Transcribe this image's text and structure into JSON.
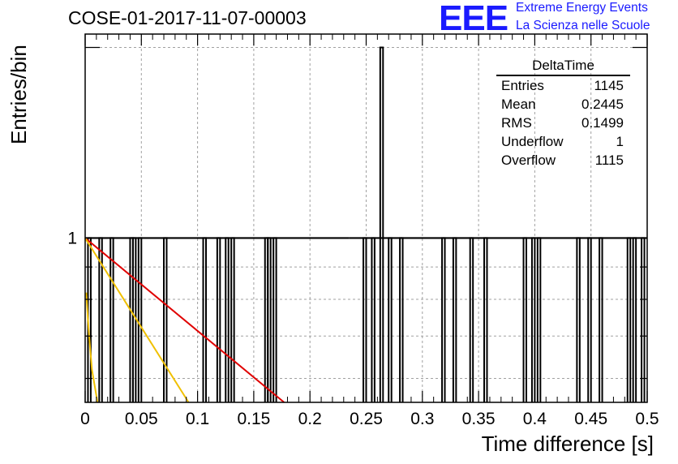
{
  "header": {
    "title": "COSE-01-2017-11-07-00003",
    "logo_text": "EEE",
    "logo_line1": "Extreme Energy Events",
    "logo_line2": "La Scienza nelle Scuole",
    "logo_color": "#1a1aff"
  },
  "stats_box": {
    "name": "DeltaTime",
    "rows": [
      {
        "label": "Entries",
        "value": "1145"
      },
      {
        "label": "Mean",
        "value": "0.2445"
      },
      {
        "label": "RMS",
        "value": "0.1499"
      },
      {
        "label": "Underflow",
        "value": "1"
      },
      {
        "label": "Overflow",
        "value": "1115"
      }
    ]
  },
  "chart_data": {
    "type": "bar",
    "xlabel": "Time difference [s]",
    "ylabel": "Entries/bin",
    "xlim": [
      0,
      0.5
    ],
    "ylim": [
      0.55,
      2.1
    ],
    "y_scale": "log",
    "grid": true,
    "x_ticks": [
      "0",
      "0.05",
      "0.1",
      "0.15",
      "0.2",
      "0.25",
      "0.3",
      "0.35",
      "0.4",
      "0.45",
      "0.5"
    ],
    "y_ticks": [
      "1"
    ],
    "bin_width": 0.0025,
    "bars": [
      {
        "x": 0.0025,
        "value": 1
      },
      {
        "x": 0.0125,
        "value": 1
      },
      {
        "x": 0.0225,
        "value": 1
      },
      {
        "x": 0.04,
        "value": 1
      },
      {
        "x": 0.0425,
        "value": 1
      },
      {
        "x": 0.0475,
        "value": 1
      },
      {
        "x": 0.07,
        "value": 1
      },
      {
        "x": 0.105,
        "value": 1
      },
      {
        "x": 0.1175,
        "value": 1
      },
      {
        "x": 0.125,
        "value": 1
      },
      {
        "x": 0.13,
        "value": 1
      },
      {
        "x": 0.16,
        "value": 1
      },
      {
        "x": 0.1625,
        "value": 1
      },
      {
        "x": 0.1675,
        "value": 1
      },
      {
        "x": 0.2475,
        "value": 1
      },
      {
        "x": 0.255,
        "value": 1
      },
      {
        "x": 0.2625,
        "value": 2
      },
      {
        "x": 0.27,
        "value": 1
      },
      {
        "x": 0.28,
        "value": 1
      },
      {
        "x": 0.3175,
        "value": 1
      },
      {
        "x": 0.3275,
        "value": 1
      },
      {
        "x": 0.3425,
        "value": 1
      },
      {
        "x": 0.355,
        "value": 1
      },
      {
        "x": 0.39,
        "value": 1
      },
      {
        "x": 0.3975,
        "value": 1
      },
      {
        "x": 0.4025,
        "value": 1
      },
      {
        "x": 0.4375,
        "value": 1
      },
      {
        "x": 0.4475,
        "value": 1
      },
      {
        "x": 0.4575,
        "value": 1
      },
      {
        "x": 0.4825,
        "value": 1
      },
      {
        "x": 0.4875,
        "value": 1
      },
      {
        "x": 0.495,
        "value": 1
      }
    ],
    "baseline_level": 1,
    "baseline_level_segments": [
      [
        0,
        0.235
      ],
      [
        0.235,
        0.5
      ]
    ],
    "fit_curves": [
      {
        "color": "#e00000",
        "points": [
          [
            0,
            1
          ],
          [
            0.177,
            0.55
          ]
        ]
      },
      {
        "color": "#f0c000",
        "points": [
          [
            0,
            1
          ],
          [
            0.092,
            0.55
          ]
        ]
      },
      {
        "color": "#f0c000",
        "points": [
          [
            0.001,
            0.82
          ],
          [
            0.003,
            0.72
          ],
          [
            0.006,
            0.62
          ],
          [
            0.011,
            0.55
          ]
        ]
      }
    ]
  }
}
